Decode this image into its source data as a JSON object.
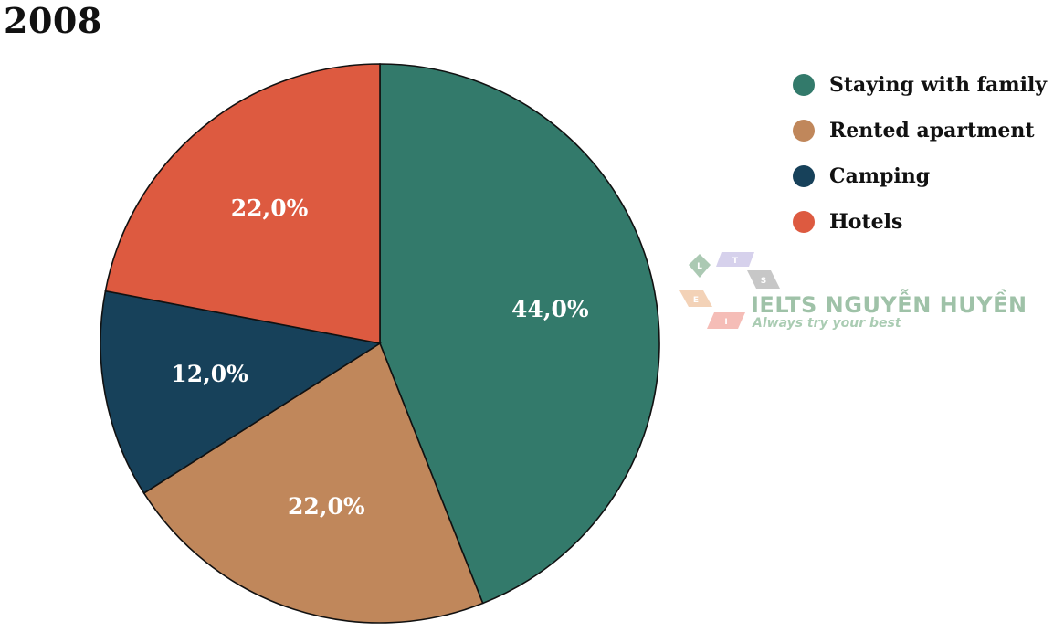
{
  "chart_data": {
    "type": "pie",
    "title": "2008",
    "categories": [
      "Staying with family",
      "Rented apartment",
      "Camping",
      "Hotels"
    ],
    "values": [
      44.0,
      22.0,
      12.0,
      22.0
    ],
    "data_labels": [
      "44,0%",
      "22,0%",
      "12,0%",
      "22,0%"
    ],
    "colors": [
      "#337a6b",
      "#c0875b",
      "#17415a",
      "#dd5a40"
    ],
    "start_angle": "12 o'clock",
    "direction": "clockwise",
    "legend_position": "top-right"
  },
  "watermark": {
    "logo_letters": [
      "L",
      "T",
      "S",
      "E",
      "I"
    ],
    "brand": "IELTS NGUYỄN HUYỀN",
    "slogan": "Always try your best"
  }
}
